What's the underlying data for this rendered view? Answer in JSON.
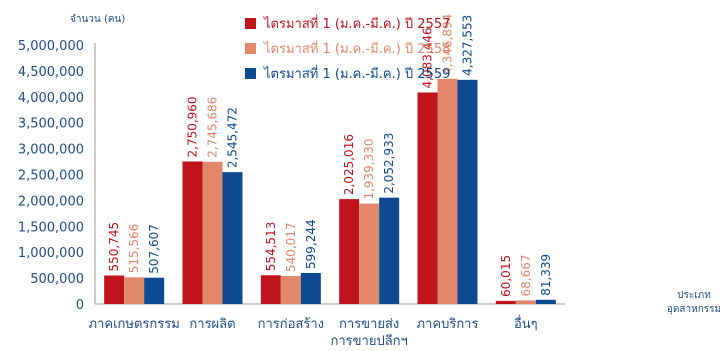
{
  "chart_data": {
    "type": "bar",
    "ylabel": "จำนวน (คน)",
    "xlabel": [
      "ประเภท",
      "อุตสาหกรรม"
    ],
    "ylim": [
      0,
      5000000
    ],
    "yticks": [
      "0",
      "500,000",
      "1,000,000",
      "1,500,000",
      "2,000,000",
      "2,500,000",
      "3,000,000",
      "3,500,000",
      "4,000,000",
      "4,500,000",
      "5,000,000"
    ],
    "categories": [
      [
        "ภาคเกษตรกรรม"
      ],
      [
        "การผลิต"
      ],
      [
        "การก่อสร้าง"
      ],
      [
        "การขายส่ง",
        "การขายปลีกฯ"
      ],
      [
        "ภาคบริการ"
      ],
      [
        "อื่นๆ"
      ]
    ],
    "series": [
      {
        "name": "ไตรมาสที่ 1 (ม.ค.-มี.ค.) ปี 2557",
        "color": "#c0141c",
        "values": [
          550745,
          2750960,
          554513,
          2025016,
          4083446,
          60015
        ],
        "labels": [
          "550,745",
          "2,750,960",
          "554,513",
          "2,025,016",
          "4,083,446",
          "60,015"
        ]
      },
      {
        "name": "ไตรมาสที่ 1 (ม.ค.-มี.ค.) ปี 2558",
        "color": "#e2876a",
        "values": [
          515566,
          2745686,
          540017,
          1939330,
          4346894,
          68667
        ],
        "labels": [
          "515,566",
          "2,745,686",
          "540,017",
          "1,939,330",
          "4,346,894",
          "68,667"
        ]
      },
      {
        "name": "ไตรมาสที่ 1 (ม.ค.-มี.ค.) ปี 2559",
        "color": "#0d4a92",
        "values": [
          507607,
          2545472,
          599244,
          2052933,
          4327553,
          81339
        ],
        "labels": [
          "507,607",
          "2,545,472",
          "599,244",
          "2,052,933",
          "4,327,553",
          "81,339"
        ]
      }
    ],
    "legend_position": "top",
    "grid": false
  }
}
